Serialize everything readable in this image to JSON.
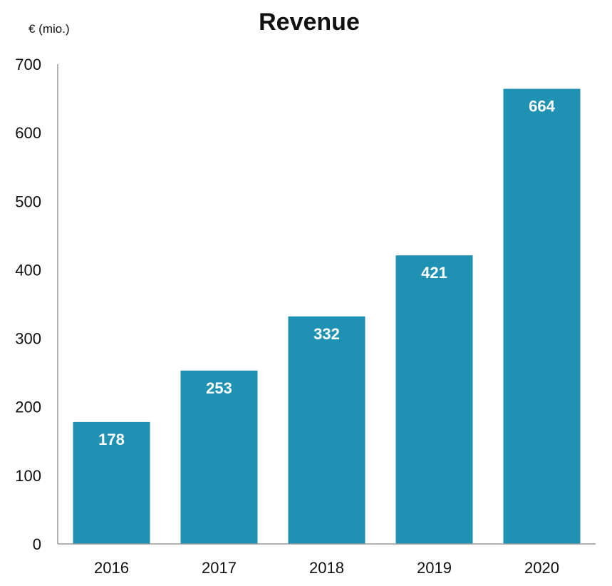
{
  "chart_data": {
    "type": "bar",
    "title": "Revenue",
    "unit_label": "€ (mio.)",
    "xlabel": "",
    "ylabel": "",
    "categories": [
      "2016",
      "2017",
      "2018",
      "2019",
      "2020"
    ],
    "values": [
      178,
      253,
      332,
      421,
      664
    ],
    "data_labels": [
      "178",
      "253",
      "332",
      "421",
      "664"
    ],
    "ylim": [
      0,
      700
    ],
    "y_ticks": [
      "0",
      "100",
      "200",
      "300",
      "400",
      "500",
      "600",
      "700"
    ],
    "y_tick_values": [
      0,
      100,
      200,
      300,
      400,
      500,
      600,
      700
    ],
    "grid": false,
    "legend": "none",
    "colors": {
      "bar": "#1f91b3",
      "axis": "#9a9a9a",
      "text": "#111111",
      "data_label": "#ffffff"
    }
  }
}
